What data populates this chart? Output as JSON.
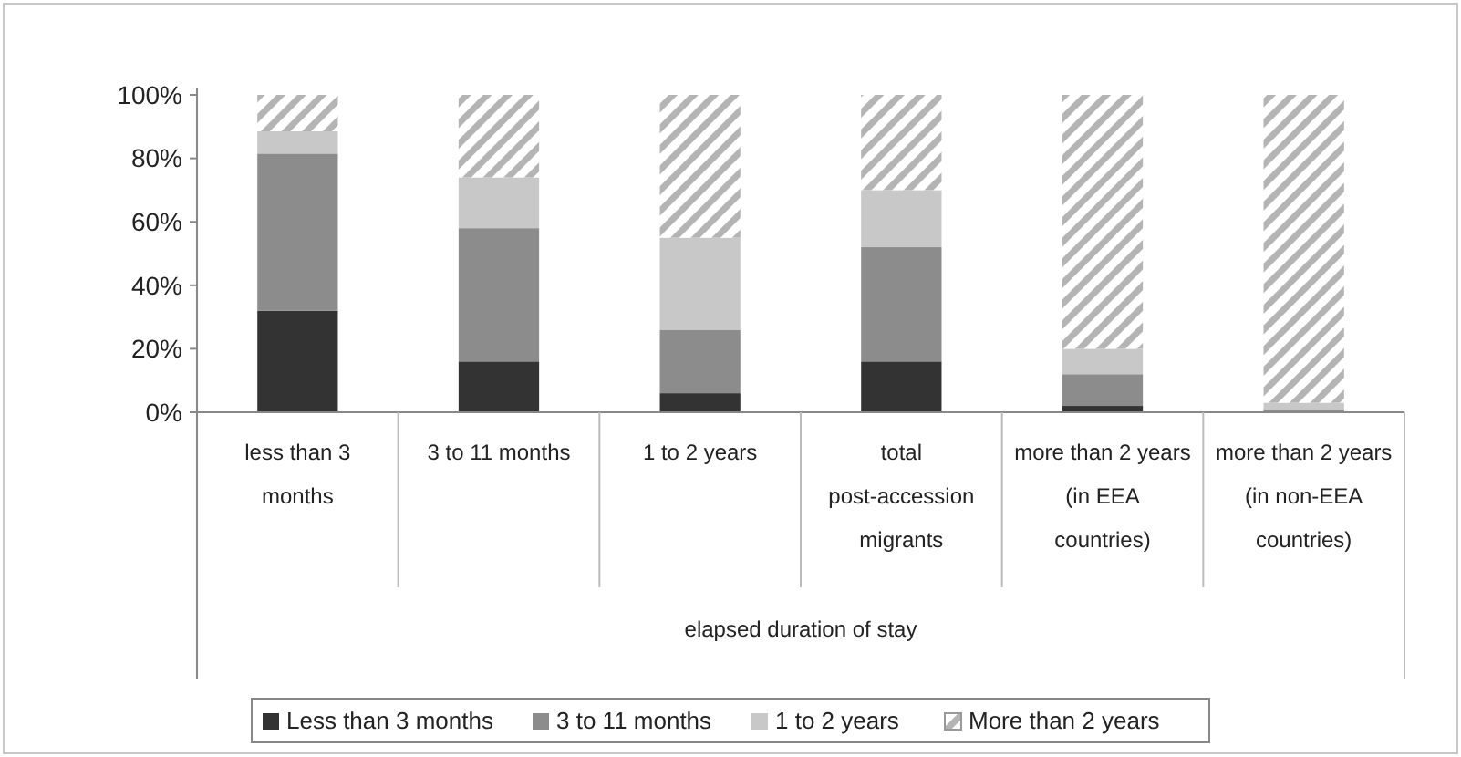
{
  "chart_data": {
    "type": "bar",
    "stacked": true,
    "categories": [
      "less than 3 months",
      "3 to 11 months",
      "1 to 2 years",
      "total post-accession migrants",
      "more than 2 years    (in EEA countries)",
      "more than 2 years (in non-EEA countries)"
    ],
    "series": [
      {
        "name": "Less than 3 months",
        "color": "#333333",
        "values": [
          32,
          16,
          6,
          16,
          2,
          0
        ]
      },
      {
        "name": "3 to 11 months",
        "color": "#8c8c8c",
        "values": [
          49.5,
          42,
          20,
          36,
          10,
          1
        ]
      },
      {
        "name": "1 to 2 years",
        "color": "#c8c8c8",
        "values": [
          7,
          16,
          29,
          18,
          8,
          2
        ]
      },
      {
        "name": "More than 2 years",
        "color": "#b4b4b4",
        "values": [
          11.5,
          26,
          45,
          30,
          80,
          97
        ]
      }
    ],
    "xlabel": "elapsed duration of stay",
    "ylim": [
      0,
      100
    ],
    "yticks": [
      {
        "value": 0,
        "label": "0%"
      },
      {
        "value": 20,
        "label": "20%"
      },
      {
        "value": 40,
        "label": "40%"
      },
      {
        "value": 60,
        "label": "60%"
      },
      {
        "value": 80,
        "label": "80%"
      },
      {
        "value": 100,
        "label": "100%"
      }
    ],
    "grid": false,
    "legend": "bottom"
  }
}
